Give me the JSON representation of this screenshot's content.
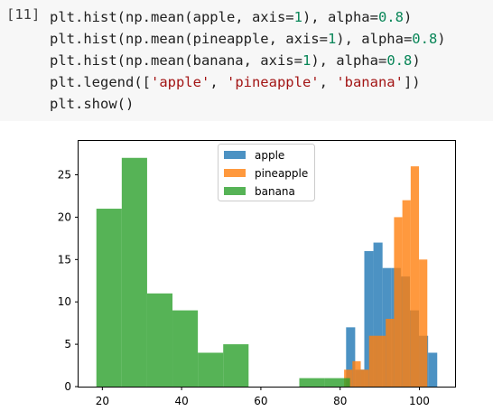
{
  "cell": {
    "prompt": "[11]",
    "lines": [
      [
        {
          "t": "plt.hist(np.mean(apple, axis="
        },
        {
          "t": "1",
          "c": "num"
        },
        {
          "t": "), alpha="
        },
        {
          "t": "0.8",
          "c": "num"
        },
        {
          "t": ")"
        }
      ],
      [
        {
          "t": "plt.hist(np.mean(pineapple, axis="
        },
        {
          "t": "1",
          "c": "num"
        },
        {
          "t": "), alpha="
        },
        {
          "t": "0.8",
          "c": "num"
        },
        {
          "t": ")"
        }
      ],
      [
        {
          "t": "plt.hist(np.mean(banana, axis="
        },
        {
          "t": "1",
          "c": "num"
        },
        {
          "t": "), alpha="
        },
        {
          "t": "0.8",
          "c": "num"
        },
        {
          "t": ")"
        }
      ],
      [
        {
          "t": "plt.legend(["
        },
        {
          "t": "'apple'",
          "c": "str"
        },
        {
          "t": ", "
        },
        {
          "t": "'pineapple'",
          "c": "str"
        },
        {
          "t": ", "
        },
        {
          "t": "'banana'",
          "c": "str"
        },
        {
          "t": "])"
        }
      ],
      [
        {
          "t": "plt.show()"
        }
      ]
    ]
  },
  "chart_data": {
    "type": "bar",
    "title": "",
    "xlabel": "",
    "ylabel": "",
    "xlim": [
      14,
      109
    ],
    "ylim": [
      0,
      29
    ],
    "xticks": [
      20,
      40,
      60,
      80,
      100
    ],
    "yticks": [
      0,
      5,
      10,
      15,
      20,
      25
    ],
    "legend_position": "top-center",
    "alpha": 0.8,
    "series": [
      {
        "name": "apple",
        "color": "#1f77b4",
        "bins": [
          81.5,
          83.8,
          86.1,
          88.4,
          90.7,
          93.0,
          95.3,
          97.6,
          99.9,
          102.2,
          104.5
        ],
        "counts": [
          7,
          2,
          16,
          17,
          14,
          14,
          13,
          9,
          6,
          4
        ]
      },
      {
        "name": "pineapple",
        "color": "#ff7f0e",
        "bins": [
          81.0,
          83.1,
          85.2,
          87.3,
          89.4,
          91.5,
          93.6,
          95.7,
          97.8,
          99.9,
          102.0
        ],
        "counts": [
          2,
          3,
          2,
          6,
          6,
          8,
          20,
          22,
          26,
          15
        ]
      },
      {
        "name": "banana",
        "color": "#2ca02c",
        "bins": [
          18.5,
          24.9,
          31.3,
          37.7,
          44.1,
          50.5,
          56.9,
          63.3,
          69.7,
          76.1,
          82.5
        ],
        "counts": [
          21,
          27,
          11,
          9,
          4,
          5,
          0,
          0,
          1,
          1
        ]
      }
    ]
  }
}
